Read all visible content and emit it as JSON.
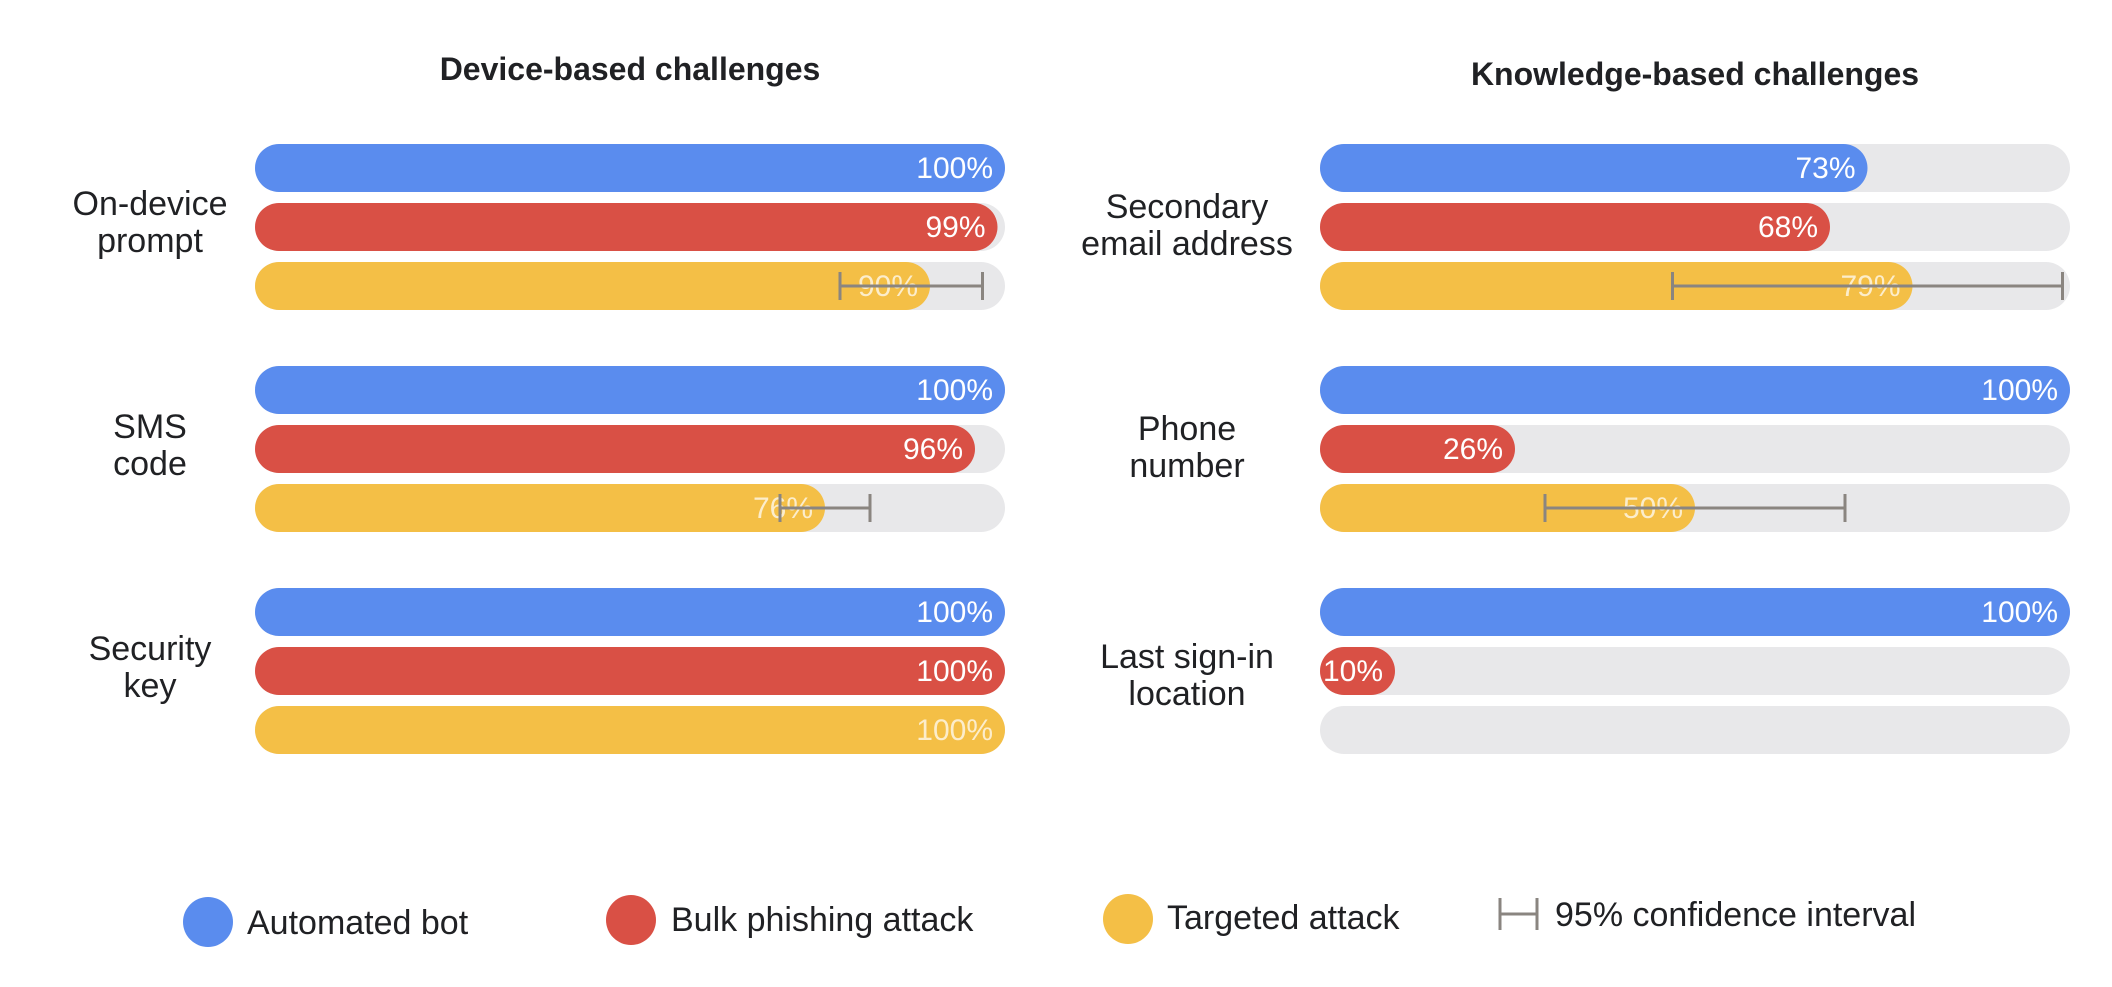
{
  "colors": {
    "automated_bot": "#5a8cee",
    "bulk_phishing": "#d95045",
    "targeted": "#f4bf46",
    "track": "#e8e8ea",
    "ci": "#8a8580",
    "text": "#202124"
  },
  "chart_data": [
    {
      "type": "bar",
      "title": "Device-based challenges",
      "categories": [
        "On-device prompt",
        "SMS code",
        "Security key"
      ],
      "series": [
        {
          "name": "Automated bot",
          "values": [
            100,
            100,
            100
          ],
          "labels": [
            "100%",
            "100%",
            "100%"
          ]
        },
        {
          "name": "Bulk phishing attack",
          "values": [
            99,
            96,
            100
          ],
          "labels": [
            "99%",
            "96%",
            "100%"
          ]
        },
        {
          "name": "Targeted attack",
          "values": [
            90,
            76,
            100
          ],
          "labels": [
            "90%",
            "76%",
            "100%"
          ],
          "ci": [
            [
              78,
              97
            ],
            [
              70,
              82
            ],
            null
          ]
        }
      ],
      "xlim": [
        0,
        100
      ]
    },
    {
      "type": "bar",
      "title": "Knowledge-based challenges",
      "categories": [
        "Secondary email address",
        "Phone number",
        "Last sign-in location"
      ],
      "series": [
        {
          "name": "Automated bot",
          "values": [
            73,
            100,
            100
          ],
          "labels": [
            "73%",
            "100%",
            "100%"
          ]
        },
        {
          "name": "Bulk phishing attack",
          "values": [
            68,
            26,
            10
          ],
          "labels": [
            "68%",
            "26%",
            "10%"
          ]
        },
        {
          "name": "Targeted attack",
          "values": [
            79,
            50,
            0
          ],
          "labels": [
            "79%",
            "50%",
            ""
          ],
          "ci": [
            [
              47,
              99
            ],
            [
              30,
              70
            ],
            null
          ]
        }
      ],
      "xlim": [
        0,
        100
      ]
    }
  ],
  "group_labels": [
    [
      "On-device",
      "prompt"
    ],
    [
      "SMS",
      "code"
    ],
    [
      "Security",
      "key"
    ],
    [
      "Secondary",
      "email address"
    ],
    [
      "Phone",
      "number"
    ],
    [
      "Last sign-in",
      "location"
    ]
  ],
  "legend": [
    {
      "label": "Automated bot",
      "kind": "dot",
      "color_key": "automated_bot"
    },
    {
      "label": "Bulk phishing attack",
      "kind": "dot",
      "color_key": "bulk_phishing"
    },
    {
      "label": "Targeted attack",
      "kind": "dot",
      "color_key": "targeted"
    },
    {
      "label": "95% confidence interval",
      "kind": "ci",
      "color_key": "ci"
    }
  ]
}
